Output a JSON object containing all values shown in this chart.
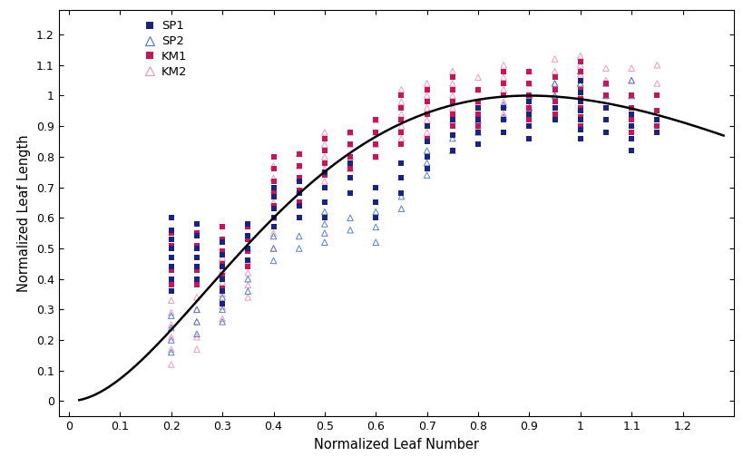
{
  "xlabel": "Normalized Leaf Number",
  "ylabel": "Normalized Leaf Length",
  "xlim": [
    -0.02,
    1.3
  ],
  "ylim": [
    -0.05,
    1.28
  ],
  "xticks": [
    0,
    0.1,
    0.2,
    0.3,
    0.4,
    0.5,
    0.6,
    0.7,
    0.8,
    0.9,
    1.0,
    1.1,
    1.2
  ],
  "yticks": [
    0,
    0.1,
    0.2,
    0.3,
    0.4,
    0.5,
    0.6,
    0.7,
    0.8,
    0.9,
    1.0,
    1.1,
    1.2
  ],
  "curve_color": "#000000",
  "curve_lw": 1.8,
  "SP1_color": "#1a237e",
  "SP2_color": "#4472c4",
  "KM1_color": "#c2185b",
  "KM2_color": "#f48fb1",
  "sp1_x": [
    0.2,
    0.2,
    0.2,
    0.2,
    0.2,
    0.2,
    0.2,
    0.2,
    0.25,
    0.25,
    0.25,
    0.25,
    0.25,
    0.25,
    0.3,
    0.3,
    0.3,
    0.3,
    0.3,
    0.3,
    0.35,
    0.35,
    0.35,
    0.35,
    0.4,
    0.4,
    0.4,
    0.4,
    0.4,
    0.45,
    0.45,
    0.45,
    0.45,
    0.5,
    0.5,
    0.5,
    0.5,
    0.55,
    0.55,
    0.55,
    0.6,
    0.6,
    0.6,
    0.65,
    0.65,
    0.65,
    0.7,
    0.7,
    0.7,
    0.7,
    0.75,
    0.75,
    0.75,
    0.8,
    0.8,
    0.8,
    0.8,
    0.85,
    0.85,
    0.85,
    0.9,
    0.9,
    0.9,
    0.9,
    0.95,
    0.95,
    1.0,
    1.0,
    1.0,
    1.0,
    1.0,
    1.0,
    1.0,
    1.05,
    1.05,
    1.05,
    1.1,
    1.1,
    1.1,
    1.1,
    1.15,
    1.15
  ],
  "sp1_y": [
    0.36,
    0.4,
    0.44,
    0.47,
    0.5,
    0.53,
    0.56,
    0.6,
    0.4,
    0.44,
    0.47,
    0.5,
    0.54,
    0.58,
    0.32,
    0.36,
    0.4,
    0.44,
    0.48,
    0.52,
    0.46,
    0.5,
    0.54,
    0.58,
    0.57,
    0.6,
    0.63,
    0.67,
    0.7,
    0.6,
    0.64,
    0.68,
    0.72,
    0.6,
    0.65,
    0.7,
    0.75,
    0.68,
    0.73,
    0.78,
    0.6,
    0.65,
    0.7,
    0.68,
    0.73,
    0.78,
    0.76,
    0.8,
    0.85,
    0.9,
    0.82,
    0.87,
    0.92,
    0.84,
    0.88,
    0.92,
    0.96,
    0.88,
    0.92,
    0.96,
    0.86,
    0.9,
    0.94,
    0.98,
    0.92,
    0.96,
    0.86,
    0.89,
    0.92,
    0.95,
    0.98,
    1.01,
    1.05,
    0.88,
    0.92,
    0.96,
    0.82,
    0.86,
    0.9,
    0.94,
    0.88,
    0.92
  ],
  "sp2_x": [
    0.2,
    0.2,
    0.2,
    0.2,
    0.25,
    0.25,
    0.25,
    0.3,
    0.3,
    0.3,
    0.35,
    0.35,
    0.4,
    0.4,
    0.4,
    0.45,
    0.45,
    0.5,
    0.5,
    0.5,
    0.5,
    0.55,
    0.55,
    0.6,
    0.6,
    0.6,
    0.65,
    0.65,
    0.7,
    0.7,
    0.7,
    0.75,
    0.75,
    0.8,
    0.8,
    0.85,
    0.85,
    0.9,
    0.9,
    0.95,
    0.95,
    1.0,
    1.0,
    1.0,
    1.05,
    1.05,
    1.1,
    1.1
  ],
  "sp2_y": [
    0.16,
    0.2,
    0.24,
    0.28,
    0.22,
    0.26,
    0.3,
    0.26,
    0.3,
    0.34,
    0.36,
    0.4,
    0.46,
    0.5,
    0.54,
    0.5,
    0.54,
    0.52,
    0.55,
    0.58,
    0.62,
    0.56,
    0.6,
    0.52,
    0.57,
    0.62,
    0.63,
    0.67,
    0.74,
    0.78,
    0.82,
    0.82,
    0.86,
    0.88,
    0.92,
    0.93,
    0.97,
    0.96,
    1.0,
    1.0,
    1.04,
    1.0,
    1.04,
    1.08,
    1.0,
    1.04,
    1.0,
    1.05
  ],
  "km1_x": [
    0.2,
    0.2,
    0.2,
    0.2,
    0.2,
    0.25,
    0.25,
    0.25,
    0.25,
    0.25,
    0.3,
    0.3,
    0.3,
    0.3,
    0.3,
    0.3,
    0.35,
    0.35,
    0.35,
    0.35,
    0.4,
    0.4,
    0.4,
    0.4,
    0.4,
    0.4,
    0.45,
    0.45,
    0.45,
    0.45,
    0.45,
    0.5,
    0.5,
    0.5,
    0.5,
    0.5,
    0.55,
    0.55,
    0.55,
    0.55,
    0.6,
    0.6,
    0.6,
    0.6,
    0.65,
    0.65,
    0.65,
    0.65,
    0.65,
    0.7,
    0.7,
    0.7,
    0.7,
    0.7,
    0.75,
    0.75,
    0.75,
    0.75,
    0.75,
    0.8,
    0.8,
    0.8,
    0.8,
    0.85,
    0.85,
    0.85,
    0.85,
    0.85,
    0.9,
    0.9,
    0.9,
    0.9,
    0.9,
    0.95,
    0.95,
    0.95,
    0.95,
    1.0,
    1.0,
    1.0,
    1.0,
    1.0,
    1.0,
    1.0,
    1.0,
    1.05,
    1.05,
    1.05,
    1.05,
    1.1,
    1.1,
    1.1,
    1.1,
    1.15,
    1.15,
    1.15
  ],
  "km1_y": [
    0.38,
    0.43,
    0.47,
    0.51,
    0.55,
    0.38,
    0.43,
    0.47,
    0.51,
    0.55,
    0.37,
    0.41,
    0.45,
    0.49,
    0.53,
    0.57,
    0.44,
    0.49,
    0.53,
    0.57,
    0.6,
    0.64,
    0.68,
    0.72,
    0.76,
    0.8,
    0.65,
    0.69,
    0.73,
    0.77,
    0.81,
    0.7,
    0.74,
    0.78,
    0.82,
    0.86,
    0.76,
    0.8,
    0.84,
    0.88,
    0.8,
    0.84,
    0.88,
    0.92,
    0.84,
    0.88,
    0.92,
    0.96,
    1.0,
    0.86,
    0.9,
    0.94,
    0.98,
    1.02,
    0.9,
    0.94,
    0.98,
    1.02,
    1.06,
    0.9,
    0.94,
    0.98,
    1.02,
    0.92,
    0.96,
    1.0,
    1.04,
    1.08,
    0.92,
    0.96,
    1.0,
    1.04,
    1.08,
    0.94,
    0.98,
    1.02,
    1.06,
    0.9,
    0.93,
    0.96,
    0.99,
    1.02,
    1.05,
    1.08,
    1.11,
    0.92,
    0.96,
    1.0,
    1.04,
    0.88,
    0.92,
    0.96,
    1.0,
    0.9,
    0.95,
    1.0
  ],
  "km2_x": [
    0.2,
    0.2,
    0.2,
    0.2,
    0.2,
    0.2,
    0.25,
    0.25,
    0.25,
    0.25,
    0.25,
    0.3,
    0.3,
    0.3,
    0.3,
    0.3,
    0.3,
    0.35,
    0.35,
    0.35,
    0.35,
    0.35,
    0.4,
    0.4,
    0.4,
    0.4,
    0.4,
    0.4,
    0.4,
    0.45,
    0.45,
    0.45,
    0.45,
    0.45,
    0.5,
    0.5,
    0.5,
    0.5,
    0.5,
    0.55,
    0.55,
    0.55,
    0.55,
    0.6,
    0.6,
    0.6,
    0.6,
    0.65,
    0.65,
    0.65,
    0.65,
    0.65,
    0.7,
    0.7,
    0.7,
    0.7,
    0.7,
    0.75,
    0.75,
    0.75,
    0.75,
    0.75,
    0.8,
    0.8,
    0.8,
    0.8,
    0.8,
    0.85,
    0.85,
    0.85,
    0.85,
    0.85,
    0.9,
    0.9,
    0.9,
    0.9,
    0.95,
    0.95,
    0.95,
    0.95,
    1.0,
    1.0,
    1.0,
    1.0,
    1.0,
    1.0,
    1.05,
    1.05,
    1.05,
    1.1,
    1.1,
    1.1,
    1.15,
    1.15
  ],
  "km2_y": [
    0.12,
    0.17,
    0.21,
    0.25,
    0.29,
    0.33,
    0.17,
    0.21,
    0.26,
    0.3,
    0.34,
    0.27,
    0.31,
    0.35,
    0.39,
    0.43,
    0.47,
    0.34,
    0.38,
    0.42,
    0.46,
    0.5,
    0.5,
    0.55,
    0.6,
    0.65,
    0.69,
    0.73,
    0.77,
    0.65,
    0.69,
    0.73,
    0.77,
    0.81,
    0.72,
    0.76,
    0.8,
    0.84,
    0.88,
    0.76,
    0.8,
    0.84,
    0.88,
    0.8,
    0.84,
    0.88,
    0.92,
    0.86,
    0.9,
    0.94,
    0.98,
    1.02,
    0.88,
    0.92,
    0.96,
    1.0,
    1.04,
    0.92,
    0.96,
    1.0,
    1.04,
    1.08,
    0.9,
    0.94,
    0.98,
    1.02,
    1.06,
    0.94,
    0.98,
    1.02,
    1.06,
    1.1,
    0.96,
    1.0,
    1.04,
    1.08,
    1.0,
    1.04,
    1.08,
    1.12,
    0.96,
    1.0,
    1.04,
    1.07,
    1.1,
    1.13,
    1.0,
    1.05,
    1.09,
    1.0,
    1.05,
    1.09,
    1.04,
    1.1
  ]
}
